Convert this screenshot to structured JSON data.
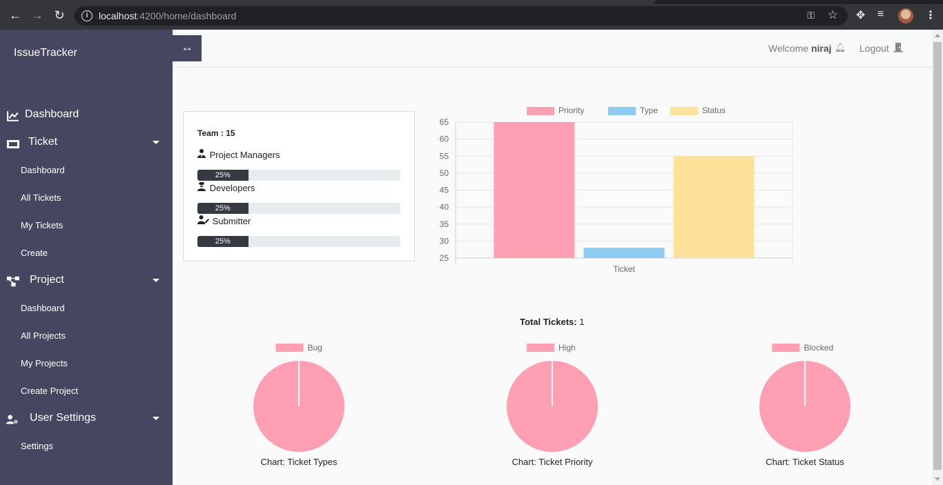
{
  "browser": {
    "url_host": "localhost",
    "url_path": ":4200/home/dashboard",
    "icons": [
      "back-icon",
      "forward-icon",
      "reload-icon",
      "info-icon",
      "key-icon",
      "star-icon",
      "puzzle-icon",
      "media-icon",
      "avatar",
      "menu-icon"
    ]
  },
  "sidebar": {
    "brand": "IssueTracker",
    "sections": [
      {
        "label": "Dashboard",
        "icon": "chart-line-icon",
        "items": []
      },
      {
        "label": "Ticket",
        "icon": "ticket-icon",
        "items": [
          "Dashboard",
          "All Tickets",
          "My Tickets",
          "Create"
        ]
      },
      {
        "label": "Project",
        "icon": "project-diagram-icon",
        "items": [
          "Dashboard",
          "All Projects",
          "My Projects",
          "Create Project"
        ]
      },
      {
        "label": "User Settings",
        "icon": "user-cog-icon",
        "items": [
          "Settings"
        ]
      }
    ],
    "bg_color": "#464660"
  },
  "header": {
    "welcome_prefix": "Welcome",
    "username": "niraj",
    "logout_label": "Logout"
  },
  "team": {
    "title": "Team : 15",
    "roles": [
      {
        "label": "Project Managers",
        "icon": "user-tie-icon",
        "percent": 25,
        "percent_label": "25%"
      },
      {
        "label": "Developers",
        "icon": "user-secret-icon",
        "percent": 25,
        "percent_label": "25%"
      },
      {
        "label": "Submitter",
        "icon": "user-edit-icon",
        "percent": 25,
        "percent_label": "25%"
      }
    ]
  },
  "chart_data": [
    {
      "type": "bar",
      "categories": [
        "Ticket"
      ],
      "series": [
        {
          "name": "Priority",
          "values": [
            65
          ],
          "color": "#ff9fb3"
        },
        {
          "name": "Type",
          "values": [
            28
          ],
          "color": "#8ecbf0"
        },
        {
          "name": "Status",
          "values": [
            55
          ],
          "color": "#fde29a"
        }
      ],
      "ylim": [
        25,
        65
      ],
      "yticks": [
        25,
        30,
        35,
        40,
        45,
        50,
        55,
        60,
        65
      ],
      "grid": true,
      "legend": "top"
    },
    {
      "type": "pie",
      "labels": [
        "Bug"
      ],
      "values": [
        1
      ],
      "colors": [
        "#ff9fb3"
      ],
      "caption": "Chart: Ticket Types",
      "legend": "top"
    },
    {
      "type": "pie",
      "labels": [
        "High"
      ],
      "values": [
        1
      ],
      "colors": [
        "#ff9fb3"
      ],
      "caption": "Chart: Ticket Priority",
      "legend": "top"
    },
    {
      "type": "pie",
      "labels": [
        "Blocked"
      ],
      "values": [
        1
      ],
      "colors": [
        "#ff9fb3"
      ],
      "caption": "Chart: Ticket Status",
      "legend": "top"
    }
  ],
  "totals": {
    "label": "Total Tickets:",
    "value": "1"
  }
}
